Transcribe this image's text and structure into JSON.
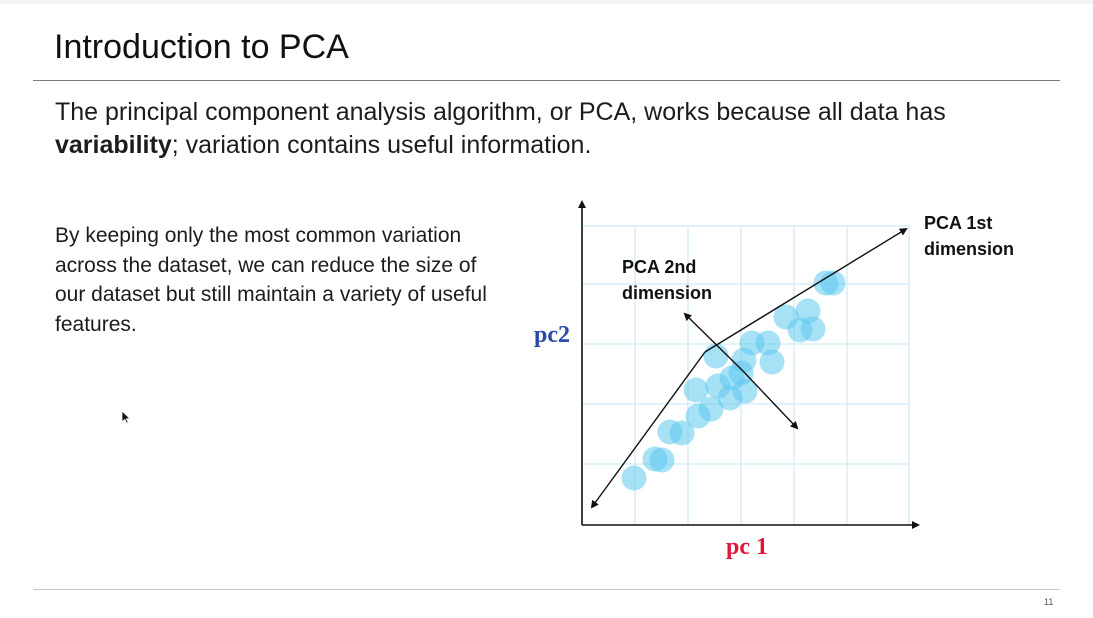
{
  "slide": {
    "title": "Introduction to PCA",
    "intro_pre": "The principal component analysis algorithm, or PCA, works because all data has ",
    "intro_bold": "variability",
    "intro_post": "; variation contains useful information.",
    "body": "By keeping only the most common variation across the dataset, we can reduce the size of our dataset but still maintain a variety of useful features.",
    "page_number": "11"
  },
  "diagram": {
    "x_axis_label": "pc 1",
    "y_axis_label": "pc2",
    "pca1_label_line1": "PCA 1st",
    "pca1_label_line2": "dimension",
    "pca2_label_line1": "PCA 2nd",
    "pca2_label_line2": "dimension",
    "colors": {
      "x_label": "#e0153a",
      "y_label": "#2a4aa8",
      "points": "#5ec8ee",
      "grid": "#cfe9f3",
      "axes": "#111111"
    },
    "icons": {
      "cursor": "mouse-pointer-icon"
    }
  }
}
